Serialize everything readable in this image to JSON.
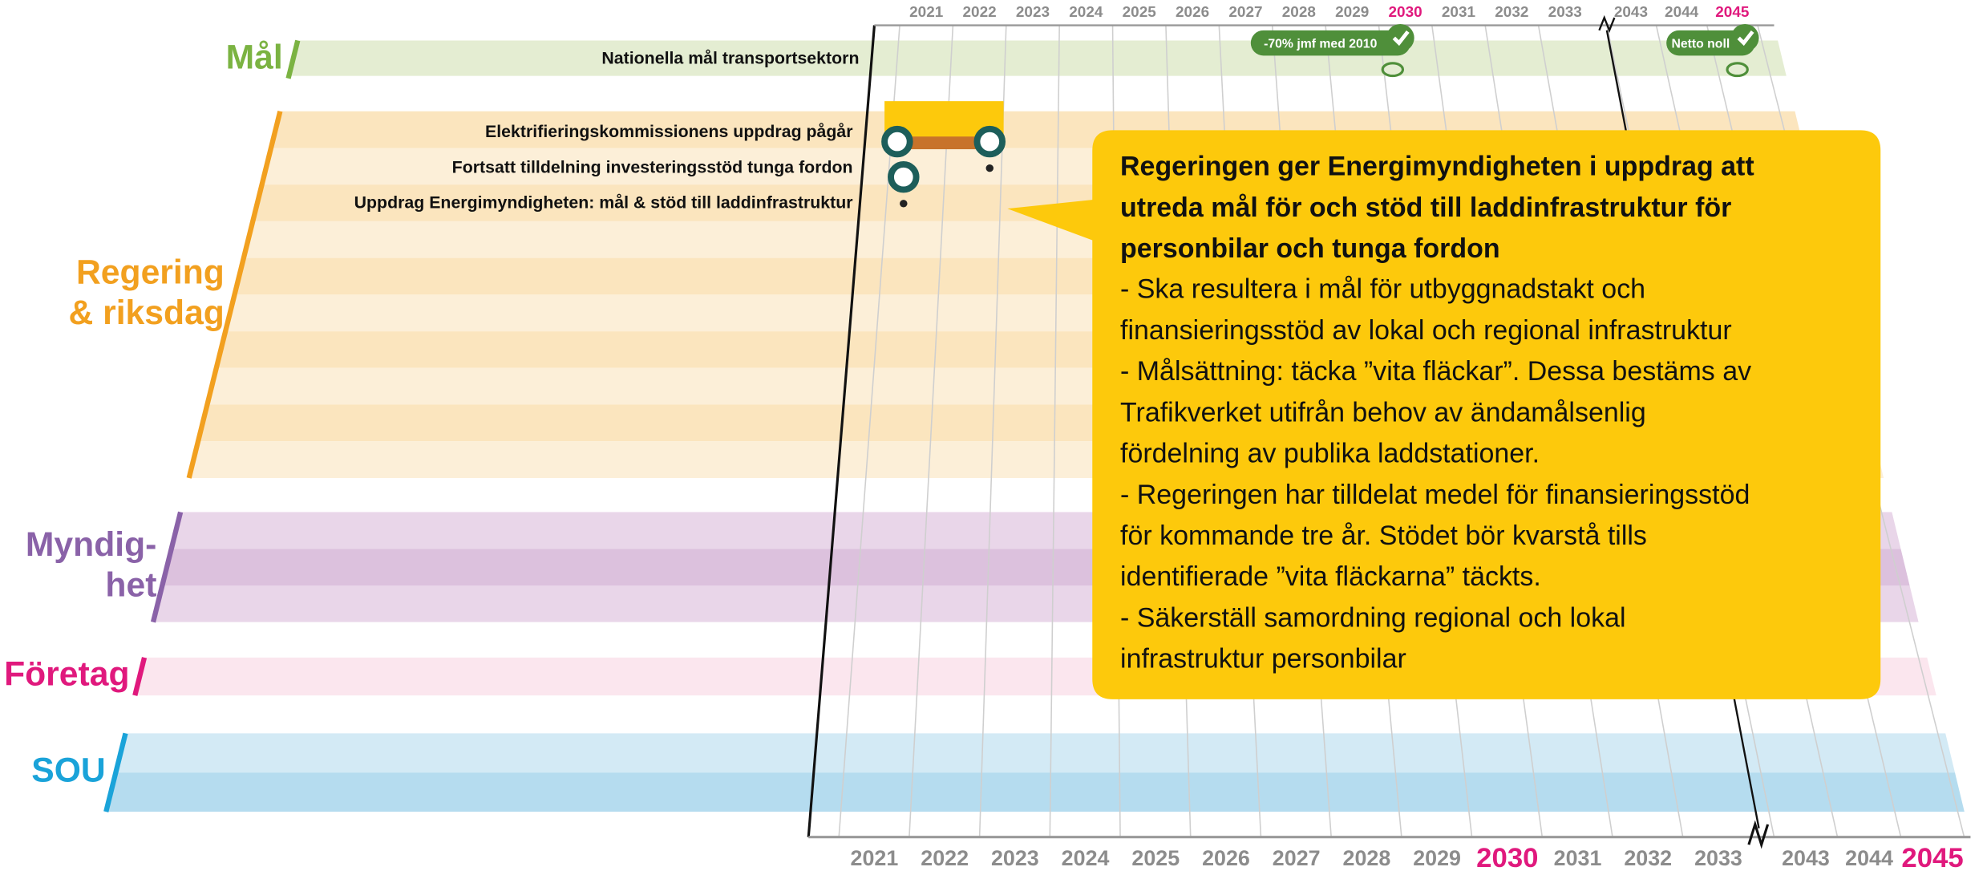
{
  "timeline": {
    "years": [
      "2021",
      "2022",
      "2023",
      "2024",
      "2025",
      "2026",
      "2027",
      "2028",
      "2029",
      "2030",
      "2031",
      "2032",
      "2033",
      "2043",
      "2044",
      "2045"
    ]
  },
  "categories": [
    {
      "label_lines": [
        "Mål"
      ]
    },
    {
      "label_lines": [
        "Regering",
        "& riksdag"
      ]
    },
    {
      "label_lines": [
        "Myndig-",
        "het"
      ]
    },
    {
      "label_lines": [
        "Företag"
      ]
    },
    {
      "label_lines": [
        "SOU"
      ]
    }
  ],
  "goal_row": "Nationella mål transportsektorn",
  "milestones": [
    "-70% jmf med 2010",
    "Netto noll"
  ],
  "rows": [
    "Elektrifieringskommissionens uppdrag pågår",
    "Fortsatt tilldelning investeringsstöd tunga fordon",
    "Uppdrag Energimyndigheten: mål & stöd till laddinfrastruktur"
  ],
  "callout": {
    "title_lines": [
      "Regeringen ger Energimyndigheten i uppdrag att",
      "utreda mål för och stöd till laddinfrastruktur för",
      "personbilar och tunga fordon"
    ],
    "body_lines": [
      "- Ska resultera i mål för utbyggnadstakt och",
      "finansieringsstöd av lokal och regional infrastruktur",
      "- Målsättning: täcka ”vita fläckar”. Dessa bestäms av",
      "Trafikverket utifrån behov av ändamålsenlig",
      "fördelning av publika laddstationer.",
      "- Regeringen har tilldelat medel för finansieringsstöd",
      "för kommande tre år. Stödet bör kvarstå tills",
      "identifierade ”vita fläckarna” täckts.",
      "- Säkerställ samordning regional och lokal",
      "infrastruktur personbilar"
    ]
  }
}
